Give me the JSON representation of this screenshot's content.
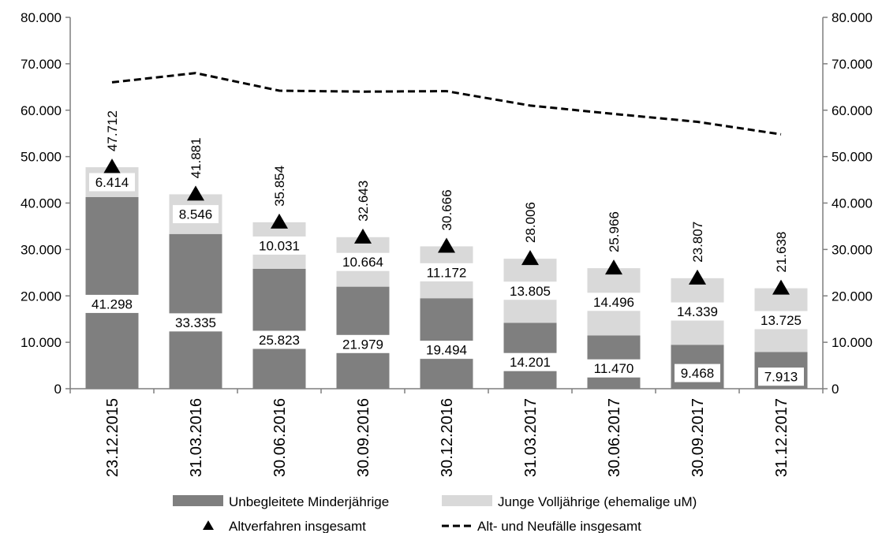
{
  "chart_data": {
    "type": "bar",
    "stacked": true,
    "categories": [
      "23.12.2015",
      "31.03.2016",
      "30.06.2016",
      "30.09.2016",
      "30.12.2016",
      "31.03.2017",
      "30.06.2017",
      "30.09.2017",
      "31.12.2017"
    ],
    "series": [
      {
        "name": "Unbegleitete Minderjährige",
        "kind": "bar",
        "color": "#7f7f7f",
        "values": [
          41298,
          33335,
          25823,
          21979,
          19494,
          14201,
          11470,
          9468,
          7913
        ],
        "labels": [
          "41.298",
          "33.335",
          "25.823",
          "21.979",
          "19.494",
          "14.201",
          "11.470",
          "9.468",
          "7.913"
        ]
      },
      {
        "name": "Junge Volljährige (ehemalige uM)",
        "kind": "bar",
        "color": "#d9d9d9",
        "values": [
          6414,
          8546,
          10031,
          10664,
          11172,
          13805,
          14496,
          14339,
          13725
        ],
        "labels": [
          "6.414",
          "8.546",
          "10.031",
          "10.664",
          "11.172",
          "13.805",
          "14.496",
          "14.339",
          "13.725"
        ]
      },
      {
        "name": "Altverfahren insgesamt",
        "kind": "marker",
        "color": "#000000",
        "values": [
          47712,
          41881,
          35854,
          32643,
          30666,
          28006,
          25966,
          23807,
          21638
        ],
        "labels": [
          "47.712",
          "41.881",
          "35.854",
          "32.643",
          "30.666",
          "28.006",
          "25.966",
          "23.807",
          "21.638"
        ]
      },
      {
        "name": "Alt- und Neufälle insgesamt",
        "kind": "dashed-line",
        "color": "#000000",
        "values": [
          66000,
          68000,
          64200,
          64000,
          64100,
          61000,
          59200,
          57500,
          54800
        ]
      }
    ],
    "ylim": [
      0,
      80000
    ],
    "yticks": [
      0,
      10000,
      20000,
      30000,
      40000,
      50000,
      60000,
      70000,
      80000
    ],
    "ytick_labels": [
      "0",
      "10.000",
      "20.000",
      "30.000",
      "40.000",
      "50.000",
      "60.000",
      "70.000",
      "80.000"
    ],
    "secondary_axis": true,
    "grid": false,
    "legend": "bottom",
    "title": "",
    "xlabel": "",
    "ylabel": ""
  }
}
